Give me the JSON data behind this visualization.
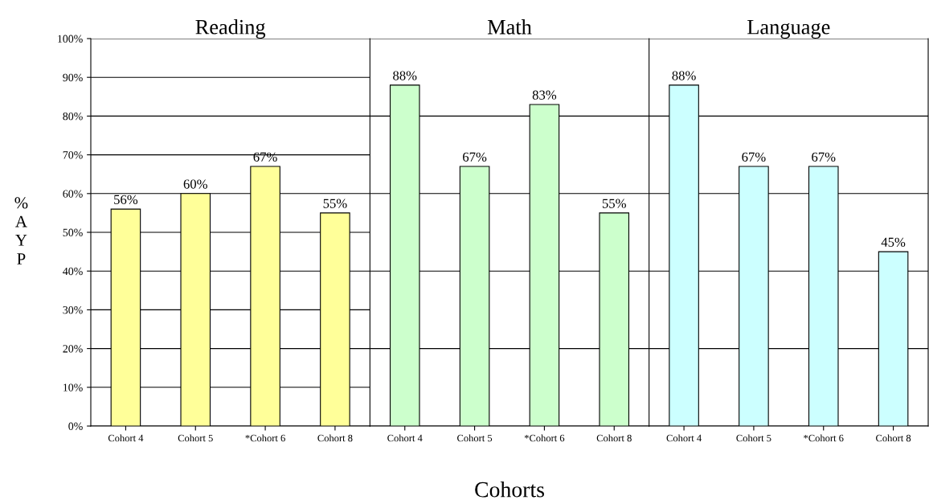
{
  "chart_data": [
    {
      "type": "bar",
      "title": "Reading",
      "ylabel": "%\nA\nY\nP",
      "categories": [
        "Cohort 4",
        "Cohort 5",
        "*Cohort 6",
        "Cohort 8"
      ],
      "values": [
        56,
        60,
        67,
        55
      ],
      "value_labels": [
        "56%",
        "60%",
        "67%",
        "55%"
      ],
      "color": "#ffff99",
      "ylim": [
        0,
        100
      ],
      "yticks": [
        {
          "value": 0,
          "label": "0%"
        },
        {
          "value": 10,
          "label": "10%"
        },
        {
          "value": 20,
          "label": "20%"
        },
        {
          "value": 30,
          "label": "30%"
        },
        {
          "value": 40,
          "label": "40%"
        },
        {
          "value": 50,
          "label": "50%"
        },
        {
          "value": 60,
          "label": "60%"
        },
        {
          "value": 70,
          "label": "70%"
        },
        {
          "value": 80,
          "label": "80%"
        },
        {
          "value": 90,
          "label": "90%"
        },
        {
          "value": 100,
          "label": "100%"
        }
      ],
      "grid": "y"
    },
    {
      "type": "bar",
      "title": "Math",
      "xlabel": "Cohorts",
      "categories": [
        "Cohort 4",
        "Cohort 5",
        "*Cohort 6",
        "Cohort 8"
      ],
      "values": [
        88,
        67,
        83,
        55
      ],
      "value_labels": [
        "88%",
        "67%",
        "83%",
        "55%"
      ],
      "color": "#ccffcc",
      "ylim": [
        0,
        100
      ],
      "tick_labels": "x",
      "grid": "y"
    },
    {
      "type": "bar",
      "title": "Language",
      "categories": [
        "Cohort 4",
        "Cohort 5",
        "*Cohort 6",
        "Cohort 8"
      ],
      "values": [
        88,
        67,
        67,
        45
      ],
      "value_labels": [
        "88%",
        "67%",
        "67%",
        "45%"
      ],
      "color": "#ccffff",
      "ylim": [
        0,
        100
      ],
      "tick_labels": "x",
      "grid": "y"
    }
  ]
}
